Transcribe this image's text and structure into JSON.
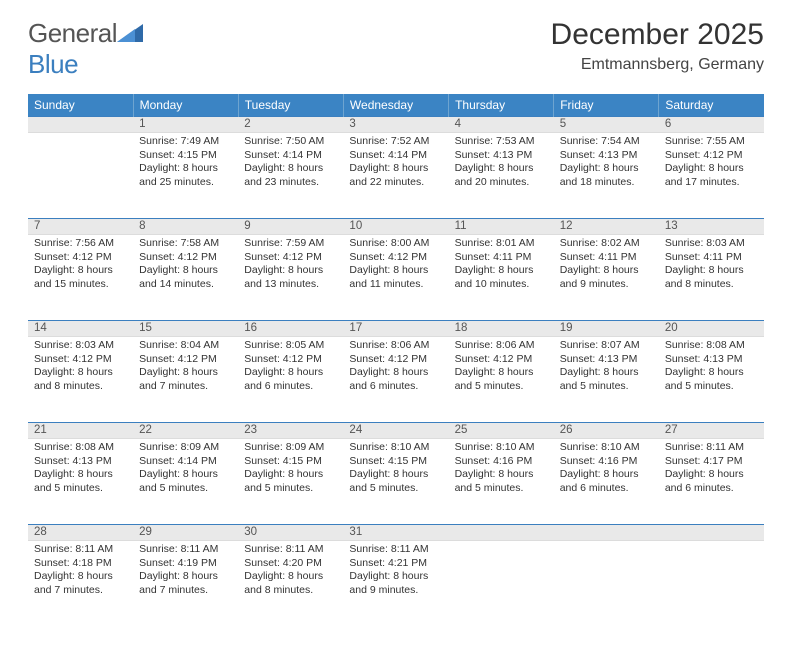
{
  "brand": {
    "part1": "General",
    "part2": "Blue"
  },
  "title": "December 2025",
  "location": "Emtmannsberg, Germany",
  "weekdays": [
    "Sunday",
    "Monday",
    "Tuesday",
    "Wednesday",
    "Thursday",
    "Friday",
    "Saturday"
  ],
  "colors": {
    "header_bg": "#3b84c4",
    "rule": "#3b7fbf",
    "daynum_bg": "#e9e9e9"
  },
  "weeks": [
    [
      null,
      {
        "n": "1",
        "sr": "7:49 AM",
        "ss": "4:15 PM",
        "dl": "8 hours and 25 minutes."
      },
      {
        "n": "2",
        "sr": "7:50 AM",
        "ss": "4:14 PM",
        "dl": "8 hours and 23 minutes."
      },
      {
        "n": "3",
        "sr": "7:52 AM",
        "ss": "4:14 PM",
        "dl": "8 hours and 22 minutes."
      },
      {
        "n": "4",
        "sr": "7:53 AM",
        "ss": "4:13 PM",
        "dl": "8 hours and 20 minutes."
      },
      {
        "n": "5",
        "sr": "7:54 AM",
        "ss": "4:13 PM",
        "dl": "8 hours and 18 minutes."
      },
      {
        "n": "6",
        "sr": "7:55 AM",
        "ss": "4:12 PM",
        "dl": "8 hours and 17 minutes."
      }
    ],
    [
      {
        "n": "7",
        "sr": "7:56 AM",
        "ss": "4:12 PM",
        "dl": "8 hours and 15 minutes."
      },
      {
        "n": "8",
        "sr": "7:58 AM",
        "ss": "4:12 PM",
        "dl": "8 hours and 14 minutes."
      },
      {
        "n": "9",
        "sr": "7:59 AM",
        "ss": "4:12 PM",
        "dl": "8 hours and 13 minutes."
      },
      {
        "n": "10",
        "sr": "8:00 AM",
        "ss": "4:12 PM",
        "dl": "8 hours and 11 minutes."
      },
      {
        "n": "11",
        "sr": "8:01 AM",
        "ss": "4:11 PM",
        "dl": "8 hours and 10 minutes."
      },
      {
        "n": "12",
        "sr": "8:02 AM",
        "ss": "4:11 PM",
        "dl": "8 hours and 9 minutes."
      },
      {
        "n": "13",
        "sr": "8:03 AM",
        "ss": "4:11 PM",
        "dl": "8 hours and 8 minutes."
      }
    ],
    [
      {
        "n": "14",
        "sr": "8:03 AM",
        "ss": "4:12 PM",
        "dl": "8 hours and 8 minutes."
      },
      {
        "n": "15",
        "sr": "8:04 AM",
        "ss": "4:12 PM",
        "dl": "8 hours and 7 minutes."
      },
      {
        "n": "16",
        "sr": "8:05 AM",
        "ss": "4:12 PM",
        "dl": "8 hours and 6 minutes."
      },
      {
        "n": "17",
        "sr": "8:06 AM",
        "ss": "4:12 PM",
        "dl": "8 hours and 6 minutes."
      },
      {
        "n": "18",
        "sr": "8:06 AM",
        "ss": "4:12 PM",
        "dl": "8 hours and 5 minutes."
      },
      {
        "n": "19",
        "sr": "8:07 AM",
        "ss": "4:13 PM",
        "dl": "8 hours and 5 minutes."
      },
      {
        "n": "20",
        "sr": "8:08 AM",
        "ss": "4:13 PM",
        "dl": "8 hours and 5 minutes."
      }
    ],
    [
      {
        "n": "21",
        "sr": "8:08 AM",
        "ss": "4:13 PM",
        "dl": "8 hours and 5 minutes."
      },
      {
        "n": "22",
        "sr": "8:09 AM",
        "ss": "4:14 PM",
        "dl": "8 hours and 5 minutes."
      },
      {
        "n": "23",
        "sr": "8:09 AM",
        "ss": "4:15 PM",
        "dl": "8 hours and 5 minutes."
      },
      {
        "n": "24",
        "sr": "8:10 AM",
        "ss": "4:15 PM",
        "dl": "8 hours and 5 minutes."
      },
      {
        "n": "25",
        "sr": "8:10 AM",
        "ss": "4:16 PM",
        "dl": "8 hours and 5 minutes."
      },
      {
        "n": "26",
        "sr": "8:10 AM",
        "ss": "4:16 PM",
        "dl": "8 hours and 6 minutes."
      },
      {
        "n": "27",
        "sr": "8:11 AM",
        "ss": "4:17 PM",
        "dl": "8 hours and 6 minutes."
      }
    ],
    [
      {
        "n": "28",
        "sr": "8:11 AM",
        "ss": "4:18 PM",
        "dl": "8 hours and 7 minutes."
      },
      {
        "n": "29",
        "sr": "8:11 AM",
        "ss": "4:19 PM",
        "dl": "8 hours and 7 minutes."
      },
      {
        "n": "30",
        "sr": "8:11 AM",
        "ss": "4:20 PM",
        "dl": "8 hours and 8 minutes."
      },
      {
        "n": "31",
        "sr": "8:11 AM",
        "ss": "4:21 PM",
        "dl": "8 hours and 9 minutes."
      },
      null,
      null,
      null
    ]
  ],
  "labels": {
    "sunrise": "Sunrise: ",
    "sunset": "Sunset: ",
    "daylight": "Daylight: "
  }
}
